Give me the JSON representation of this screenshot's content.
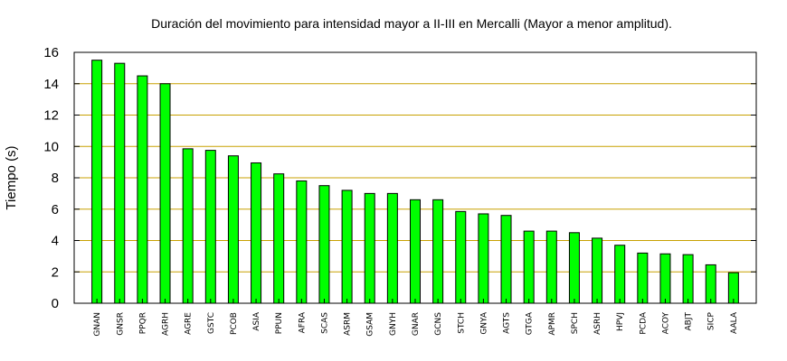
{
  "chart_data": {
    "type": "bar",
    "title": "Duración del movimiento para intensidad mayor a II-III en Mercalli (Mayor a menor amplitud).",
    "xlabel": "",
    "ylabel": "Tiempo (s)",
    "ylim": [
      0,
      16
    ],
    "yticks": [
      0,
      2,
      4,
      6,
      8,
      10,
      12,
      14,
      16
    ],
    "grid": true,
    "grid_color": "#c8a000",
    "bar_color": "#00ff00",
    "bar_edge_color": "#000000",
    "categories": [
      "GNAN",
      "GNSR",
      "PPQR",
      "AGRH",
      "AGRE",
      "GSTC",
      "PCOB",
      "ASIA",
      "PPUN",
      "AFRA",
      "SCAS",
      "ASRM",
      "GSAM",
      "GNYH",
      "GNAR",
      "GCNS",
      "STCH",
      "GNYA",
      "AGTS",
      "GTGA",
      "APMR",
      "SPCH",
      "ASRH",
      "HPVJ",
      "PCDA",
      "ACOY",
      "ABJT",
      "SICP",
      "AALA"
    ],
    "values": [
      15.5,
      15.3,
      14.5,
      14.0,
      9.85,
      9.75,
      9.4,
      8.95,
      8.25,
      7.8,
      7.5,
      7.2,
      7.0,
      7.0,
      6.6,
      6.6,
      5.85,
      5.7,
      5.6,
      4.6,
      4.6,
      4.5,
      4.15,
      3.7,
      3.2,
      3.15,
      3.1,
      2.45,
      1.95
    ]
  }
}
